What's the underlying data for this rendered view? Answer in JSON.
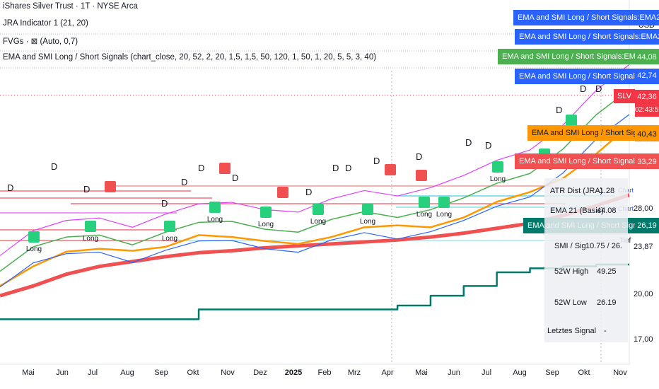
{
  "header": {
    "title": "iShares Silver Trust · 1T · NYSE Arca",
    "indicator1": "JRA Indicator 1 (21, 20)",
    "indicator2": "FVGs · ⊠ (Auto, 0,7)",
    "indicator3": "EMA and SMI Long / Short Signals (chart_close, 20, 52, 2, 20, 1,5, 1,5, 50, 120, 1, 50, 1, 20, 5, 5, 3, 40)"
  },
  "currency": "USD",
  "price_axis": [
    "20,00",
    "17,00",
    "23,87",
    "28,00",
    "42,36",
    "40,43",
    "33,29",
    "26,19",
    "44,08",
    "42,74"
  ],
  "ticker_label": "SLV",
  "countdown": "02:43:59",
  "signal_labels": [
    {
      "text": "EMA and SMI Long / Short Signals:EMA21 + ATR",
      "color": "#2962ff"
    },
    {
      "text": "EMA and SMI Long / Short Signals:EMA21 Basis",
      "color": "#2962ff"
    },
    {
      "text": "EMA and SMI Long / Short Signals:EMA 21 (Kanalmitte)",
      "color": "#4caf50"
    },
    {
      "text": "EMA and SMI Long / Short Signals:EMA21 - ATR",
      "color": "#2962ff"
    },
    {
      "text": "EMA and SMI Long / Short Signals:SMA 50",
      "color": "#ff9800"
    },
    {
      "text": "EMA and SMI Long / Short Signals:SMA 200",
      "color": "#f05050"
    },
    {
      "text": "EMA and SMI Long / Short Signals:52W Low",
      "color": "#00796b"
    }
  ],
  "info_table": [
    {
      "label": "ATR Dist (JRA)",
      "value": "-1.28"
    },
    {
      "label": "EMA 21 (Basis)",
      "value": "44.08"
    },
    {
      "label": "SMI / Sig",
      "value": "10.75 / 26."
    },
    {
      "label": "52W High",
      "value": "49.25"
    },
    {
      "label": "52W Low",
      "value": "26.19"
    },
    {
      "label": "Letztes Signal",
      "value": "-"
    }
  ],
  "side_tags": [
    "Chart",
    "Chart",
    "Tief"
  ],
  "x_axis": [
    "Mai",
    "Jun",
    "Jul",
    "Aug",
    "Sep",
    "Okt",
    "Nov",
    "Dez",
    "2025",
    "Feb",
    "Mrz",
    "Apr",
    "Mai",
    "Jun",
    "Jul",
    "Aug",
    "Sep",
    "Okt",
    "Nov"
  ],
  "signal_text": {
    "long": "Long",
    "d": "D",
    "short": "Short"
  },
  "chart_data": {
    "type": "line",
    "x": [
      "Apr",
      "Mai",
      "Jun",
      "Jul",
      "Aug",
      "Sep",
      "Okt",
      "Nov",
      "Dez",
      "Jan",
      "Feb",
      "Mrz",
      "Apr",
      "Mai",
      "Jun",
      "Jul",
      "Aug",
      "Sep",
      "Okt",
      "Nov"
    ],
    "ylim": [
      16,
      46
    ],
    "series": [
      {
        "name": "SMA 200",
        "values": [
          23.0,
          24.0,
          25.2,
          26.0,
          26.5,
          27.0,
          27.4,
          27.6,
          27.9,
          28.1,
          28.3,
          28.5,
          28.7,
          29.0,
          29.4,
          29.9,
          30.4,
          31.2,
          32.2,
          33.3
        ]
      },
      {
        "name": "SMA 50",
        "values": [
          24.0,
          26.0,
          27.5,
          27.8,
          27.6,
          28.0,
          29.2,
          29.0,
          28.6,
          28.3,
          29.0,
          30.0,
          30.2,
          30.0,
          31.0,
          32.6,
          33.6,
          35.0,
          37.5,
          40.4
        ]
      },
      {
        "name": "52W Low",
        "values": [
          20.6,
          20.6,
          20.6,
          20.6,
          20.6,
          20.6,
          21.6,
          21.6,
          21.6,
          21.6,
          21.6,
          21.6,
          22.0,
          23.0,
          24.0,
          25.4,
          25.8,
          26.0,
          26.19,
          26.19
        ]
      },
      {
        "name": "EMA 21",
        "values": [
          25.5,
          28.0,
          29.0,
          29.2,
          28.2,
          29.5,
          30.5,
          30.6,
          29.8,
          29.5,
          30.8,
          31.6,
          31.0,
          31.8,
          33.0,
          34.5,
          35.5,
          38.0,
          41.5,
          44.08
        ]
      }
    ]
  }
}
